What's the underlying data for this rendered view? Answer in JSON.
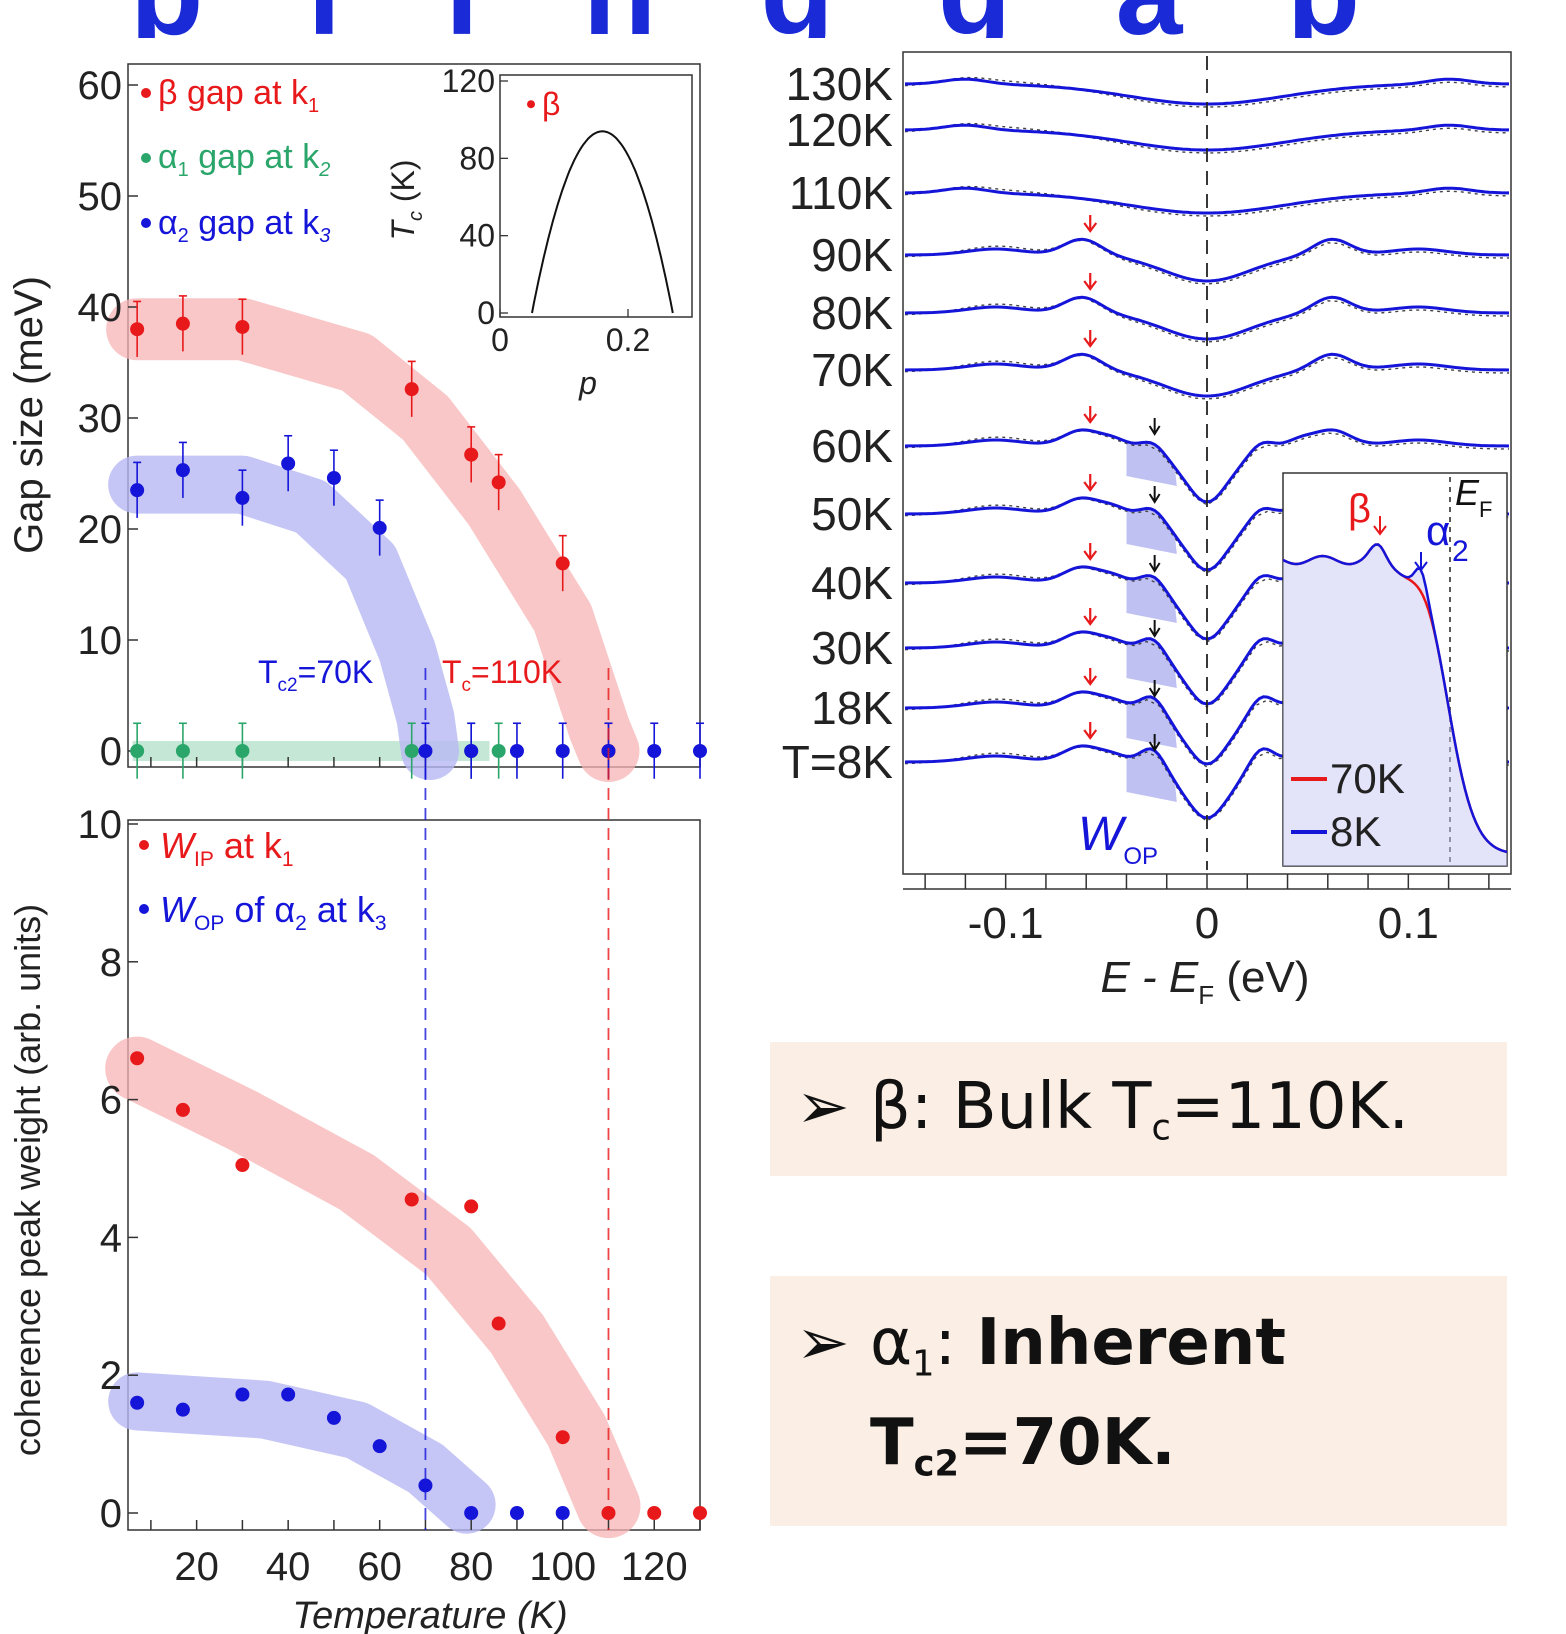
{
  "header": {
    "title_fragment": "p  l  i  n  g  g  a  p"
  },
  "chart_data": [
    {
      "type": "scatter",
      "panel": "gap-vs-temperature",
      "ylabel": "Gap size (meV)",
      "xlim": [
        5,
        130
      ],
      "ylim": [
        0,
        60
      ],
      "yticks": [
        "0",
        "10",
        "20",
        "30",
        "40",
        "50",
        "60"
      ],
      "series": [
        {
          "name": "β gap at k",
          "name_sub": "1",
          "color": "#e8191b",
          "x": [
            7,
            17,
            30,
            67,
            80,
            86,
            100,
            110
          ],
          "y": [
            38,
            38.5,
            38.2,
            32.6,
            26.7,
            24.2,
            16.9,
            0
          ],
          "err": [
            2.5,
            2.5,
            2.5,
            2.5,
            2.5,
            2.5,
            2.5,
            2.5
          ]
        },
        {
          "name": "α gap at k",
          "name_sub_a": "1",
          "name_sub_k": "2",
          "color": "#2aa66a",
          "x": [
            7,
            17,
            30,
            67,
            80,
            86
          ],
          "y": [
            0,
            0,
            0,
            0,
            0,
            0
          ],
          "err": [
            2.5,
            2.5,
            2.5,
            2.5,
            2.5,
            2.5
          ]
        },
        {
          "name": "α gap at k",
          "name_sub_a": "2",
          "name_sub_k": "3",
          "color": "#1515d9",
          "x": [
            7,
            17,
            30,
            40,
            50,
            60,
            70,
            80,
            90,
            100,
            110,
            120,
            130
          ],
          "y": [
            23.5,
            25.3,
            22.8,
            25.9,
            24.6,
            20.1,
            0,
            0,
            0,
            0,
            0,
            0,
            0
          ],
          "err": [
            2.5,
            2.5,
            2.5,
            2.5,
            2.5,
            2.5,
            2.5,
            2.5,
            2.5,
            2.5,
            2.5,
            2.5,
            2.5
          ]
        }
      ],
      "annotations": [
        {
          "text": "T",
          "sub": "c2",
          "rest": "=70K",
          "color": "#1515d9"
        },
        {
          "text": "T",
          "sub": "c",
          "rest": "=110K",
          "color": "#e8191b"
        }
      ],
      "inset": {
        "type": "line",
        "xlabel": "p",
        "ylabel": "T",
        "ylabel_sub": "c",
        "ylabel_unit": " (K)",
        "xticks": [
          "0",
          "0.2"
        ],
        "yticks": [
          "0",
          "40",
          "80",
          "120"
        ],
        "xlim": [
          0,
          0.3
        ],
        "ylim": [
          0,
          120
        ],
        "curve_peak": {
          "p": 0.16,
          "tc": 94
        },
        "curve_ends": [
          0.05,
          0.27
        ],
        "point": {
          "p": 0.05,
          "tc": 108,
          "label": "β"
        }
      }
    },
    {
      "type": "scatter",
      "panel": "coherence-peak-weight",
      "xlabel": "Temperature (K)",
      "ylabel": "coherence peak weight  (arb. units)",
      "xlim": [
        5,
        130
      ],
      "ylim": [
        0,
        10
      ],
      "xticks": [
        "20",
        "40",
        "60",
        "80",
        "100",
        "120"
      ],
      "yticks": [
        "0",
        "2",
        "4",
        "6",
        "8",
        "10"
      ],
      "series": [
        {
          "name_w": "W",
          "name_sub": "IP",
          "name_rest": " at k",
          "name_sub2": "1",
          "color": "#e8191b",
          "x": [
            7,
            17,
            30,
            67,
            80,
            86,
            100,
            110,
            120,
            130
          ],
          "y": [
            6.6,
            5.85,
            5.05,
            4.55,
            4.45,
            2.75,
            1.1,
            0,
            0,
            0
          ]
        },
        {
          "name_w": "W",
          "name_sub": "OP",
          "name_rest": " of α",
          "name_sub2": "2",
          "name_rest2": " at k",
          "name_sub3": "3",
          "color": "#1515d9",
          "x": [
            7,
            17,
            30,
            40,
            50,
            60,
            70,
            80,
            90,
            100
          ],
          "y": [
            1.6,
            1.5,
            1.72,
            1.72,
            1.38,
            0.97,
            0.4,
            0,
            0,
            0
          ]
        }
      ]
    },
    {
      "type": "line",
      "panel": "edc-spectra",
      "xlabel": "E - E",
      "xlabel_sub": "F",
      "xlabel_unit": " (eV)",
      "xlim": [
        -0.15,
        0.15
      ],
      "xticks": [
        "-0.1",
        "0",
        "0.1"
      ],
      "temperatures": [
        "130K",
        "120K",
        "110K",
        "90K",
        "80K",
        "70K",
        "60K",
        "50K",
        "40K",
        "30K",
        "18K",
        "T=8K"
      ],
      "beta_peak_energy_eV": -0.062,
      "alpha2_peak_energy_eV": -0.027,
      "fit_label": "W",
      "fit_label_sub": "OP",
      "inset": {
        "labels": {
          "beta": "β",
          "alpha": "α",
          "alpha_sub": "2",
          "ef": "E",
          "ef_sub": "F"
        },
        "legend": [
          "70K",
          "8K"
        ],
        "colors": {
          "70K": "#e8191b",
          "8K": "#1515d9"
        }
      }
    }
  ],
  "callouts": [
    {
      "bullet": "➢",
      "prefix": "β: Bulk T",
      "sub": "c",
      "suffix": "=110K."
    },
    {
      "bullet": "➢",
      "prefix": "α",
      "sub": "1",
      "mid": ": ",
      "bold1": "Inherent",
      "bold2": "T",
      "bold2_sub": "c2",
      "bold2_rest": "=70K."
    }
  ],
  "colors": {
    "red": "#e8191b",
    "blue": "#1515d9",
    "green": "#2aa66a",
    "title_blue": "#1a2ad6"
  }
}
